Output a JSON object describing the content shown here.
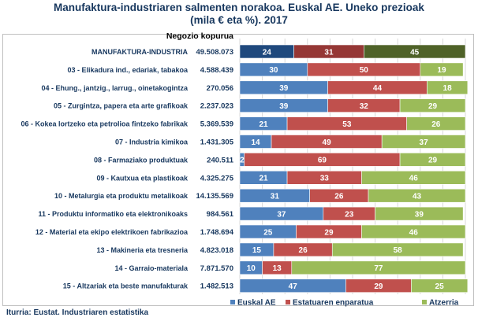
{
  "title": {
    "line1": "Manufaktura-industriaren salmenten norakoa. Euskal AE. Uneko prezioak",
    "line2": "(mila € eta %).  2017"
  },
  "source": "Iturria: Eustat. Industriaren estatistika",
  "colors": {
    "euskal_ae": "#4f81bd",
    "estatuaren_enparatua": "#c0504d",
    "atzerria": "#9bbb59",
    "total_euskal_ae": "#1f497d",
    "total_estatuaren_enparatua": "#953735",
    "total_atzerria": "#4f6228",
    "label_text": "#17375e",
    "grid": "#d9d9d9"
  },
  "chart_data": {
    "type": "bar",
    "orientation": "horizontal",
    "stacked": true,
    "percent": true,
    "xlim": [
      0,
      100
    ],
    "grid": true,
    "legend_position": "bottom",
    "volume_header": "Negozio kopurua",
    "categories": [
      "MANUFAKTURA-INDUSTRIA",
      "03 - Elikadura ind., edariak, tabakoa",
      "04 - Ehung., jantzig., larrug., oinetakogintza",
      "05 - Zurgintza, papera eta arte grafikoak",
      "06 - Kokea lortzeko eta petrolioa fintzeko fabrikak",
      "07 - Industria kimikoa",
      "08 - Farmaziako produktuak",
      "09 - Kautxua eta plastikoak",
      "10 - Metalurgia eta produktu metalikoak",
      "11 - Produktu informatiko eta elektronikoaks",
      "12 - Material eta ekipo elektrikoen fabrikazioa",
      "13 - Makineria eta tresneria",
      "14 - Garraio-materiala",
      "15 - Altzariak eta beste manufakturak"
    ],
    "volumes": [
      "49.508.073",
      "4.588.439",
      "270.056",
      "2.237.023",
      "5.369.539",
      "1.431.305",
      "240.511",
      "4.325.275",
      "14.135.569",
      "984.561",
      "1.748.694",
      "4.823.018",
      "7.871.570",
      "1.482.513"
    ],
    "series": [
      {
        "name": "Euskal AE",
        "values": [
          24,
          30,
          39,
          39,
          21,
          14,
          2,
          21,
          31,
          37,
          25,
          15,
          10,
          47
        ]
      },
      {
        "name": "Estatuaren enparatua",
        "values": [
          31,
          50,
          44,
          32,
          53,
          49,
          69,
          33,
          26,
          23,
          29,
          26,
          13,
          29
        ]
      },
      {
        "name": "Atzerria",
        "values": [
          45,
          19,
          18,
          29,
          26,
          37,
          29,
          46,
          43,
          39,
          46,
          58,
          77,
          25
        ]
      }
    ],
    "value_labels": [
      [
        "24",
        "31",
        "45"
      ],
      [
        "30",
        "50",
        "19"
      ],
      [
        "39",
        "44",
        "18"
      ],
      [
        "39",
        "32",
        "29"
      ],
      [
        "21",
        "53",
        "26"
      ],
      [
        "14",
        "49",
        "37"
      ],
      [
        "2",
        "69",
        "29"
      ],
      [
        "21",
        "33",
        "46"
      ],
      [
        "31",
        "26",
        "43"
      ],
      [
        "37",
        "23",
        "39"
      ],
      [
        "25",
        "29",
        "46"
      ],
      [
        "15",
        "26",
        "58"
      ],
      [
        "10",
        "13",
        "77"
      ],
      [
        "47",
        "29",
        "25"
      ]
    ]
  }
}
